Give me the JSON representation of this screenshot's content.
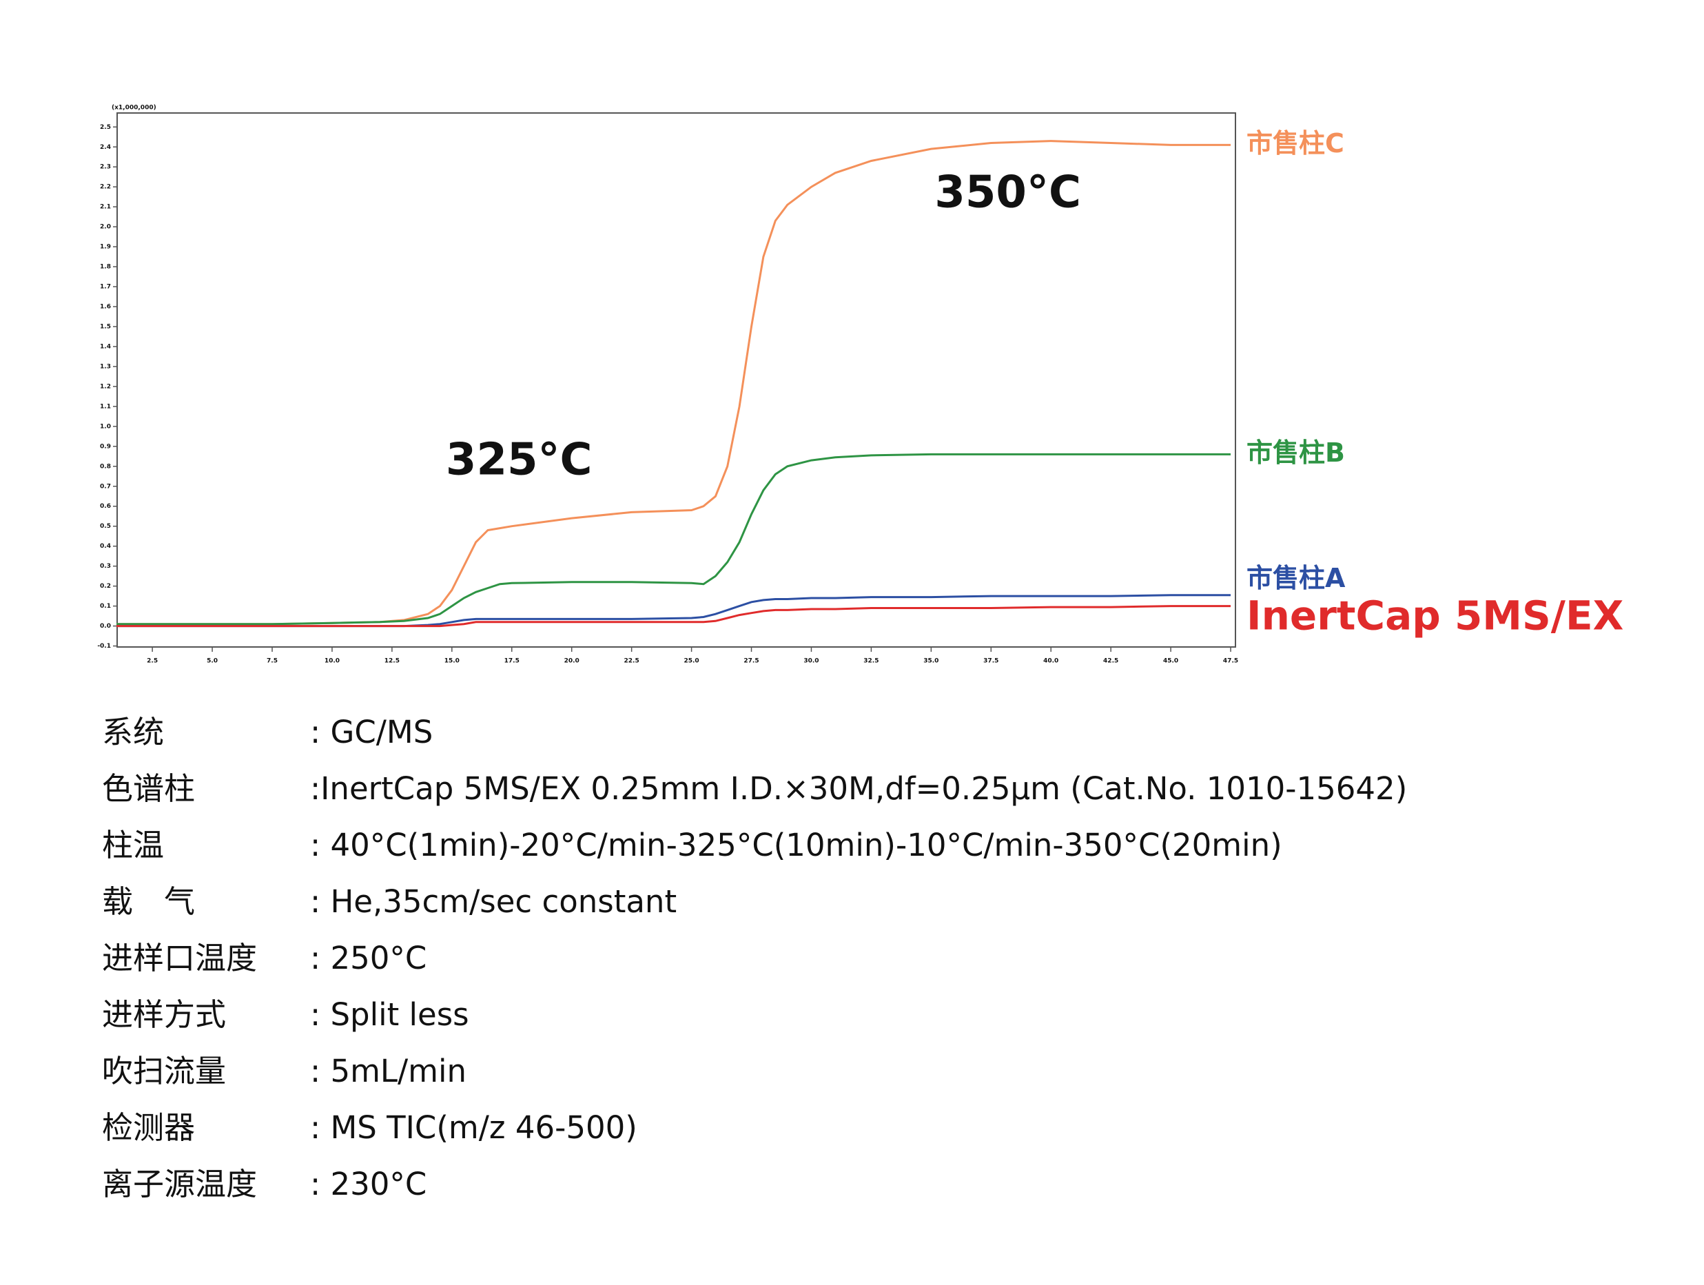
{
  "chart_data": {
    "type": "line",
    "y_multiplier": "(x1,000,000)",
    "x": [
      1,
      2.5,
      5,
      7.5,
      10,
      12,
      13,
      14,
      14.5,
      15,
      15.5,
      16,
      16.5,
      17,
      17.5,
      20,
      22.5,
      25,
      25.5,
      26,
      26.5,
      27,
      27.5,
      28,
      28.5,
      29,
      30,
      31,
      32.5,
      35,
      37.5,
      40,
      42.5,
      45,
      47.5
    ],
    "series": [
      {
        "name": "市售柱C",
        "color": "#f4905a",
        "values": [
          0.01,
          0.01,
          0.01,
          0.01,
          0.015,
          0.02,
          0.03,
          0.06,
          0.1,
          0.18,
          0.3,
          0.42,
          0.48,
          0.49,
          0.5,
          0.54,
          0.57,
          0.58,
          0.6,
          0.65,
          0.8,
          1.1,
          1.5,
          1.85,
          2.03,
          2.11,
          2.2,
          2.27,
          2.33,
          2.39,
          2.42,
          2.43,
          2.42,
          2.41,
          2.41
        ]
      },
      {
        "name": "市售柱B",
        "color": "#2e9444",
        "values": [
          0.01,
          0.01,
          0.01,
          0.01,
          0.015,
          0.02,
          0.025,
          0.04,
          0.06,
          0.1,
          0.14,
          0.17,
          0.19,
          0.21,
          0.215,
          0.22,
          0.22,
          0.215,
          0.21,
          0.25,
          0.32,
          0.42,
          0.56,
          0.68,
          0.76,
          0.8,
          0.83,
          0.845,
          0.855,
          0.86,
          0.86,
          0.86,
          0.86,
          0.86,
          0.86
        ]
      },
      {
        "name": "市售柱A",
        "color": "#2c4fa3",
        "values": [
          0,
          0,
          0,
          0,
          0,
          0,
          0,
          0.005,
          0.01,
          0.02,
          0.03,
          0.035,
          0.035,
          0.035,
          0.035,
          0.035,
          0.035,
          0.04,
          0.045,
          0.06,
          0.08,
          0.1,
          0.12,
          0.13,
          0.135,
          0.135,
          0.14,
          0.14,
          0.145,
          0.145,
          0.15,
          0.15,
          0.15,
          0.155,
          0.155
        ]
      },
      {
        "name": "InertCap 5MS/EX",
        "color": "#e02b2b",
        "values": [
          0,
          0,
          0,
          0,
          0,
          0,
          0,
          0,
          0,
          0.005,
          0.01,
          0.02,
          0.02,
          0.02,
          0.02,
          0.02,
          0.02,
          0.02,
          0.02,
          0.025,
          0.04,
          0.055,
          0.065,
          0.075,
          0.08,
          0.08,
          0.085,
          0.085,
          0.09,
          0.09,
          0.09,
          0.095,
          0.095,
          0.1,
          0.1
        ]
      }
    ],
    "annotations": [
      "325°C",
      "350°C"
    ],
    "xlim": [
      1.03,
      47.7
    ],
    "ylim": [
      -0.105,
      2.57
    ],
    "xticks": [
      2.5,
      {
        "value": 5,
        "label": "5.0"
      },
      7.5,
      {
        "value": 10,
        "label": "10.0"
      },
      12.5,
      {
        "value": 15,
        "label": "15.0"
      },
      17.5,
      {
        "value": 20,
        "label": "20.0"
      },
      22.5,
      {
        "value": 25,
        "label": "25.0"
      },
      27.5,
      {
        "value": 30,
        "label": "30.0"
      },
      32.5,
      {
        "value": 35,
        "label": "35.0"
      },
      37.5,
      {
        "value": 40,
        "label": "40.0"
      },
      42.5,
      {
        "value": 45,
        "label": "45.0"
      },
      47.5
    ],
    "yticks": [
      -0.1,
      {
        "value": 0,
        "label": "0.0"
      },
      0.1,
      0.2,
      0.3,
      0.4,
      0.5,
      0.6,
      0.7,
      0.8,
      0.9,
      {
        "value": 1,
        "label": "1.0"
      },
      1.1,
      1.2,
      1.3,
      1.4,
      1.5,
      1.6,
      1.7,
      1.8,
      1.9,
      {
        "value": 2,
        "label": "2.0"
      },
      2.1,
      2.2,
      2.3,
      2.4,
      2.5
    ],
    "grid": false
  },
  "conditions": [
    {
      "label": "系统",
      "value": ": GC/MS"
    },
    {
      "label": "色谱柱",
      "value": ":InertCap 5MS/EX 0.25mm I.D.×30M,df=0.25μm (Cat.No. 1010-15642)"
    },
    {
      "label": "柱温",
      "value": ": 40°C(1min)-20°C/min-325°C(10min)-10°C/min-350°C(20min)"
    },
    {
      "label": "载　气",
      "value": ": He,35cm/sec constant"
    },
    {
      "label": "进样口温度",
      "value": ": 250°C"
    },
    {
      "label": "进样方式",
      "value": ": Split less"
    },
    {
      "label": "吹扫流量",
      "value": ": 5mL/min"
    },
    {
      "label": "检测器",
      "value": ": MS TIC(m/z 46-500)"
    },
    {
      "label": "离子源温度",
      "value": ": 230°C"
    }
  ]
}
